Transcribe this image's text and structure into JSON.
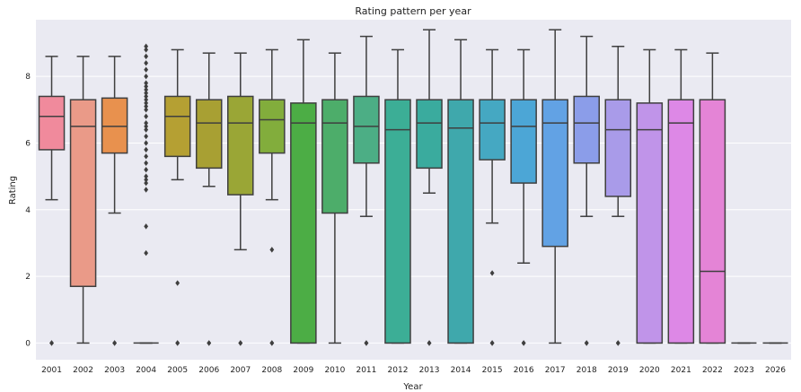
{
  "chart_data": {
    "type": "box",
    "title": "Rating pattern per year",
    "xlabel": "Year",
    "ylabel": "Rating",
    "ylim": [
      -0.5,
      9.7
    ],
    "yticks": [
      0,
      2,
      4,
      6,
      8
    ],
    "grid": true,
    "categories": [
      "2001",
      "2002",
      "2003",
      "2004",
      "2005",
      "2006",
      "2007",
      "2008",
      "2009",
      "2010",
      "2011",
      "2012",
      "2013",
      "2014",
      "2015",
      "2016",
      "2017",
      "2018",
      "2019",
      "2020",
      "2021",
      "2022",
      "2023",
      "2026"
    ],
    "colors": [
      "#f08a9c",
      "#ea9a88",
      "#e8914e",
      "#c89a38",
      "#b5a033",
      "#a8a033",
      "#9aa636",
      "#82ad3c",
      "#4cad45",
      "#4dad6a",
      "#4cae85",
      "#3cae96",
      "#3aab9e",
      "#3fa8ac",
      "#45a8c2",
      "#4ca6d6",
      "#62a2e4",
      "#8b9de9",
      "#a99be9",
      "#c094e9",
      "#dd88e6",
      "#e484d6",
      "#eb8cc4",
      "#ef8eb2"
    ],
    "boxes": [
      {
        "q1": 5.8,
        "median": 6.8,
        "q3": 7.4,
        "whislo": 4.3,
        "whishi": 8.6,
        "fliers": [
          0,
          0
        ]
      },
      {
        "q1": 1.7,
        "median": 6.5,
        "q3": 7.3,
        "whislo": 0,
        "whishi": 8.6,
        "fliers": []
      },
      {
        "q1": 5.7,
        "median": 6.5,
        "q3": 7.35,
        "whislo": 3.9,
        "whishi": 8.6,
        "fliers": [
          0,
          0
        ]
      },
      {
        "q1": 0,
        "median": 0,
        "q3": 0,
        "whislo": 0,
        "whishi": 0,
        "fliers": [
          2.7,
          3.5,
          4.6,
          4.8,
          4.9,
          5.0,
          5.2,
          5.4,
          5.6,
          5.8,
          6.0,
          6.2,
          6.4,
          6.5,
          6.6,
          6.8,
          7.0,
          7.1,
          7.2,
          7.3,
          7.4,
          7.5,
          7.6,
          7.7,
          7.8,
          8.0,
          8.2,
          8.4,
          8.6,
          8.8,
          8.9
        ]
      },
      {
        "q1": 5.6,
        "median": 6.8,
        "q3": 7.4,
        "whislo": 4.9,
        "whishi": 8.8,
        "fliers": [
          1.8,
          0,
          0
        ]
      },
      {
        "q1": 5.25,
        "median": 6.6,
        "q3": 7.3,
        "whislo": 4.7,
        "whishi": 8.7,
        "fliers": [
          0,
          0
        ]
      },
      {
        "q1": 4.45,
        "median": 6.6,
        "q3": 7.4,
        "whislo": 2.8,
        "whishi": 8.7,
        "fliers": [
          0,
          0
        ]
      },
      {
        "q1": 5.7,
        "median": 6.7,
        "q3": 7.3,
        "whislo": 4.3,
        "whishi": 8.8,
        "fliers": [
          2.8,
          0,
          0
        ]
      },
      {
        "q1": 0,
        "median": 6.6,
        "q3": 7.2,
        "whislo": 0,
        "whishi": 9.1,
        "fliers": []
      },
      {
        "q1": 3.9,
        "median": 6.6,
        "q3": 7.3,
        "whislo": 0,
        "whishi": 8.7,
        "fliers": []
      },
      {
        "q1": 5.4,
        "median": 6.5,
        "q3": 7.4,
        "whislo": 3.8,
        "whishi": 9.2,
        "fliers": [
          0,
          0
        ]
      },
      {
        "q1": 0,
        "median": 6.4,
        "q3": 7.3,
        "whislo": 0,
        "whishi": 8.8,
        "fliers": []
      },
      {
        "q1": 5.25,
        "median": 6.6,
        "q3": 7.3,
        "whislo": 4.5,
        "whishi": 9.4,
        "fliers": [
          0,
          0
        ]
      },
      {
        "q1": 0,
        "median": 6.45,
        "q3": 7.3,
        "whislo": 0,
        "whishi": 9.1,
        "fliers": []
      },
      {
        "q1": 5.5,
        "median": 6.6,
        "q3": 7.3,
        "whislo": 3.6,
        "whishi": 8.8,
        "fliers": [
          2.1,
          0,
          0
        ]
      },
      {
        "q1": 4.8,
        "median": 6.5,
        "q3": 7.3,
        "whislo": 2.4,
        "whishi": 8.8,
        "fliers": [
          0,
          0
        ]
      },
      {
        "q1": 2.9,
        "median": 6.6,
        "q3": 7.3,
        "whislo": 0,
        "whishi": 9.4,
        "fliers": []
      },
      {
        "q1": 5.4,
        "median": 6.6,
        "q3": 7.4,
        "whislo": 3.8,
        "whishi": 9.2,
        "fliers": [
          0,
          0
        ]
      },
      {
        "q1": 4.4,
        "median": 6.4,
        "q3": 7.3,
        "whislo": 3.8,
        "whishi": 8.9,
        "fliers": [
          0,
          0
        ]
      },
      {
        "q1": 0,
        "median": 6.4,
        "q3": 7.2,
        "whislo": 0,
        "whishi": 8.8,
        "fliers": []
      },
      {
        "q1": 0,
        "median": 6.6,
        "q3": 7.3,
        "whislo": 0,
        "whishi": 8.8,
        "fliers": []
      },
      {
        "q1": 0,
        "median": 2.15,
        "q3": 7.3,
        "whislo": 0,
        "whishi": 8.7,
        "fliers": []
      },
      {
        "q1": 0,
        "median": 0,
        "q3": 0,
        "whislo": 0,
        "whishi": 0,
        "fliers": []
      },
      {
        "q1": 0,
        "median": 0,
        "q3": 0,
        "whislo": 0,
        "whishi": 0,
        "fliers": []
      }
    ]
  }
}
